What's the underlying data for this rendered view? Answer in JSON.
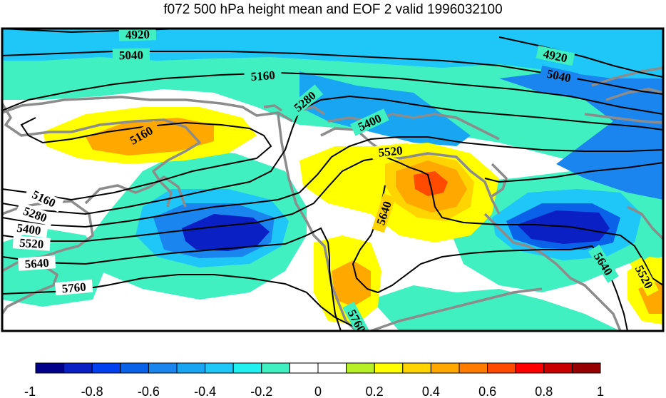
{
  "title": "f072 500 hPa height mean and EOF 2 valid 1996032100",
  "colorbar": {
    "colors": [
      "#00008b",
      "#0a1fc4",
      "#0040f0",
      "#0a62e8",
      "#1a85ee",
      "#18a6f3",
      "#1ec7f7",
      "#20f0f0",
      "#40f0c0",
      "#ffffff",
      "#ffffff",
      "#b8f028",
      "#ffff00",
      "#ffd400",
      "#ffa800",
      "#ff7c00",
      "#ff4a00",
      "#ff0000",
      "#c80000",
      "#960000"
    ],
    "ticks": [
      "-1",
      "-0.8",
      "-0.6",
      "-0.4",
      "-0.2",
      "0",
      "0.2",
      "0.4",
      "0.6",
      "0.8",
      "1"
    ]
  },
  "contour_labels": [
    "4920",
    "5040",
    "5160",
    "5280",
    "5400",
    "5520",
    "5640",
    "5760"
  ],
  "colors": {
    "coast": "#8c8c8c",
    "contour": "#000000",
    "frame": "#000000"
  }
}
